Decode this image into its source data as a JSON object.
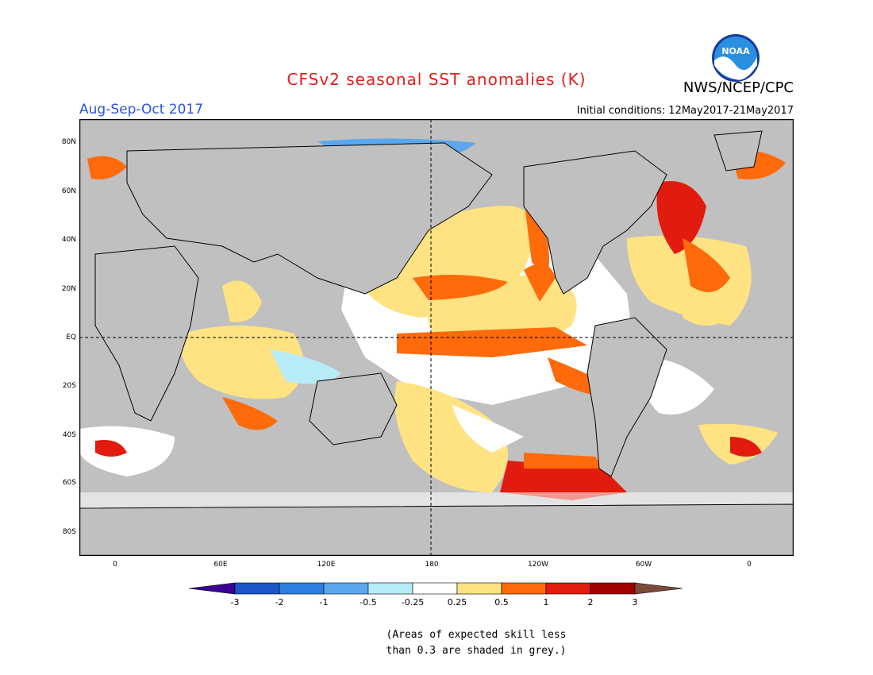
{
  "header": {
    "title": "CFSv2 seasonal SST anomalies (K)",
    "organization": "NWS/NCEP/CPC",
    "logo_text": "NOAA",
    "season": "Aug-Sep-Oct 2017",
    "initial_conditions": "Initial conditions: 12May2017-21May2017"
  },
  "axes": {
    "lat_ticks": [
      "80N",
      "60N",
      "40N",
      "20N",
      "EQ",
      "20S",
      "40S",
      "60S",
      "80S"
    ],
    "lon_ticks": [
      "0",
      "60E",
      "120E",
      "180",
      "120W",
      "60W",
      "0"
    ]
  },
  "colorbar": {
    "labels": [
      "-3",
      "-2",
      "-1",
      "-0.5",
      "-0.25",
      "0.25",
      "0.5",
      "1",
      "2",
      "3"
    ],
    "colors": {
      "lt_minus3": "#3d0096",
      "m3_m2": "#1c55c8",
      "m2_m1": "#2e7de0",
      "m1_m05": "#5aa7ee",
      "m05_m025": "#b7ecf7",
      "m025_p025": "#ffffff",
      "p025_p05": "#ffe383",
      "p05_p1": "#ff6a0a",
      "p1_p2": "#e21b0f",
      "p2_p3": "#a20000",
      "gt_p3": "#7a4a3a"
    }
  },
  "notes": {
    "line1": "(Areas of expected skill less",
    "line2": "than 0.3 are shaded in grey.)"
  },
  "map_colors": {
    "land": "#c0c0c0",
    "low_skill_ocean": "#c0c0c0"
  }
}
